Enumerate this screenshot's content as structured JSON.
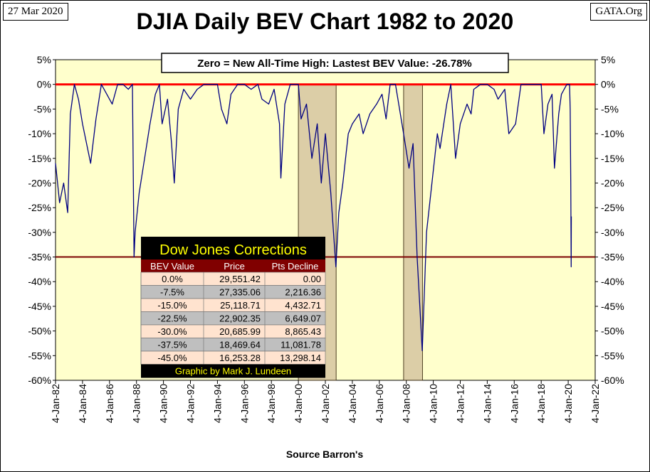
{
  "header": {
    "date": "27 Mar 2020",
    "site": "GATA.Org",
    "title": "DJIA Daily BEV Chart 1982 to 2020",
    "source": "Source Barron's"
  },
  "colors": {
    "plot_bg": "#FFFFCC",
    "series": "#000080",
    "zero_line": "#FF0000",
    "threshold_line": "#7B0000",
    "shade": "#D9C9A3",
    "table_header": "#800000",
    "table_title_text": "#FFFF00"
  },
  "chart_data": {
    "type": "line",
    "title": "DJIA Daily BEV Chart 1982 to 2020",
    "xlabel": "Source Barron's",
    "ylabel": "",
    "annotation": "Zero = New All-Time High: Lastest BEV Value: -26.78%",
    "ylim": [
      -60,
      5
    ],
    "xlim": [
      1982.0,
      2022.0
    ],
    "y_ticks": [
      "5%",
      "0%",
      "-5%",
      "-10%",
      "-15%",
      "-20%",
      "-25%",
      "-30%",
      "-35%",
      "-40%",
      "-45%",
      "-50%",
      "-55%",
      "-60%"
    ],
    "x_ticks": [
      "4-Jan-82",
      "4-Jan-84",
      "4-Jan-86",
      "4-Jan-88",
      "4-Jan-90",
      "4-Jan-92",
      "4-Jan-94",
      "4-Jan-96",
      "4-Jan-98",
      "4-Jan-00",
      "4-Jan-02",
      "4-Jan-04",
      "4-Jan-06",
      "4-Jan-08",
      "4-Jan-10",
      "4-Jan-12",
      "4-Jan-14",
      "4-Jan-16",
      "4-Jan-18",
      "4-Jan-20",
      "4-Jan-22"
    ],
    "grid": false,
    "reference_lines": [
      0,
      -35
    ],
    "shaded_ranges": [
      [
        2000.0,
        2002.8
      ],
      [
        2007.8,
        2009.2
      ]
    ],
    "series": [
      {
        "x": [
          1982.0,
          1982.3,
          1982.6,
          1982.9,
          1983.1,
          1983.4,
          1983.7,
          1984.0,
          1984.3,
          1984.6,
          1985.0,
          1985.4,
          1985.8,
          1986.2,
          1986.6,
          1987.0,
          1987.4,
          1987.7,
          1987.82,
          1987.9,
          1988.2,
          1988.6,
          1989.0,
          1989.4,
          1989.7,
          1989.9,
          1990.3,
          1990.6,
          1990.8,
          1991.1,
          1991.5,
          1992.0,
          1992.5,
          1993.0,
          1993.5,
          1994.0,
          1994.3,
          1994.7,
          1995.0,
          1995.5,
          1996.0,
          1996.5,
          1997.0,
          1997.3,
          1997.8,
          1998.2,
          1998.6,
          1998.7,
          1999.0,
          1999.4,
          2000.0,
          2000.2,
          2000.6,
          2001.0,
          2001.4,
          2001.7,
          2002.0,
          2002.4,
          2002.78,
          2003.0,
          2003.3,
          2003.7,
          2004.0,
          2004.5,
          2004.8,
          2005.3,
          2005.8,
          2006.2,
          2006.5,
          2006.8,
          2007.2,
          2007.5,
          2007.8,
          2008.2,
          2008.5,
          2008.8,
          2009.0,
          2009.18,
          2009.5,
          2009.9,
          2010.3,
          2010.5,
          2011.0,
          2011.3,
          2011.65,
          2012.0,
          2012.5,
          2012.8,
          2013.0,
          2013.5,
          2014.0,
          2014.5,
          2014.8,
          2015.3,
          2015.6,
          2016.1,
          2016.5,
          2017.0,
          2017.5,
          2018.0,
          2018.2,
          2018.5,
          2018.8,
          2018.98,
          2019.3,
          2019.5,
          2019.9,
          2020.1,
          2020.15,
          2020.19,
          2020.22,
          2020.23
        ],
        "y": [
          -16,
          -24,
          -20,
          -26,
          -6,
          0,
          -3,
          -8,
          -12,
          -16,
          -7,
          0,
          -2,
          -4,
          0,
          0,
          -1,
          0,
          -35,
          -30,
          -22,
          -15,
          -8,
          -2,
          0,
          -8,
          -3,
          -12,
          -20,
          -5,
          -1,
          -3,
          -1,
          0,
          0,
          0,
          -5,
          -8,
          -2,
          0,
          0,
          -1,
          0,
          -3,
          -4,
          -1,
          -8,
          -19,
          -4,
          0,
          0,
          -7,
          -4,
          -15,
          -8,
          -20,
          -10,
          -22,
          -37,
          -26,
          -20,
          -10,
          -8,
          -6,
          -10,
          -6,
          -4,
          -2,
          -7,
          0,
          0,
          -5,
          -10,
          -17,
          -12,
          -35,
          -45,
          -54,
          -30,
          -20,
          -10,
          -13,
          -4,
          0,
          -15,
          -8,
          -4,
          -6,
          -1,
          0,
          0,
          -1,
          -3,
          -1,
          -10,
          -8,
          0,
          0,
          0,
          0,
          -10,
          -4,
          -2,
          -17,
          -6,
          -2,
          0,
          0,
          -5,
          -20,
          -37,
          -26.78
        ]
      }
    ]
  },
  "table": {
    "title": "Dow Jones Corrections",
    "columns": [
      "BEV Value",
      "Price",
      "Pts Decline"
    ],
    "rows": [
      [
        "0.0%",
        "29,551.42",
        "0.00"
      ],
      [
        "-7.5%",
        "27,335.06",
        "2,216.36"
      ],
      [
        "-15.0%",
        "25,118.71",
        "4,432.71"
      ],
      [
        "-22.5%",
        "22,902.35",
        "6,649.07"
      ],
      [
        "-30.0%",
        "20,685.99",
        "8,865.43"
      ],
      [
        "-37.5%",
        "18,469.64",
        "11,081.78"
      ],
      [
        "-45.0%",
        "16,253.28",
        "13,298.14"
      ]
    ],
    "footer": "Graphic by Mark J. Lundeen"
  }
}
